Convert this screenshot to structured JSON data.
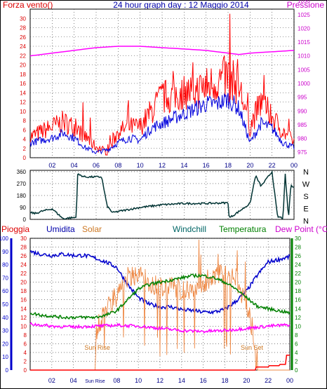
{
  "chart_data": [
    {
      "type": "line",
      "title": "24 hour graph day : 12 Maggio 2014",
      "left_label": "Forza vento()",
      "right_label": "Pressione",
      "x_ticks": [
        "02",
        "04",
        "06",
        "08",
        "10",
        "12",
        "14",
        "16",
        "18",
        "20",
        "22",
        "00"
      ],
      "y_left_ticks": [
        "0",
        "2",
        "4",
        "6",
        "8",
        "10",
        "12",
        "14",
        "16",
        "18",
        "20",
        "22",
        "24",
        "26",
        "28",
        "30"
      ],
      "y_left_range": [
        0,
        32
      ],
      "y_right_ticks": [
        "975",
        "980",
        "985",
        "990",
        "995",
        "1000",
        "1005",
        "1010",
        "1015",
        "1020",
        "1025",
        "1030"
      ],
      "y_right_range": [
        973,
        1027
      ],
      "grid": true,
      "series": [
        {
          "name": "Forza vento",
          "color": "#ff0000",
          "axis": "left",
          "style": "noisy",
          "x": [
            0,
            1,
            2,
            3,
            4,
            5,
            6,
            7,
            8,
            9,
            10,
            11,
            12,
            13,
            14,
            15,
            16,
            17,
            18,
            19,
            20,
            21,
            22,
            23,
            24
          ],
          "y": [
            4,
            5,
            6,
            7,
            6,
            4,
            2,
            1,
            5,
            6,
            6,
            9,
            12,
            12,
            13,
            13,
            14,
            15,
            16,
            14,
            6,
            11,
            8,
            5,
            3
          ]
        },
        {
          "name": "Raffica",
          "color": "#0000dd",
          "axis": "left",
          "style": "noisy",
          "x": [
            0,
            1,
            2,
            3,
            4,
            5,
            6,
            7,
            8,
            9,
            10,
            11,
            12,
            13,
            14,
            15,
            16,
            17,
            18,
            19,
            20,
            21,
            22,
            23,
            24
          ],
          "y": [
            3,
            3.5,
            4,
            5,
            4,
            2,
            1,
            1.5,
            3,
            4,
            3.5,
            6,
            7,
            8,
            9,
            10,
            11,
            11,
            12,
            10,
            3,
            7,
            6,
            3,
            2
          ]
        },
        {
          "name": "Pressione",
          "color": "#ff00ff",
          "axis": "right",
          "style": "smooth",
          "x": [
            0,
            2,
            4,
            6,
            8,
            10,
            12,
            14,
            16,
            18,
            19,
            20,
            22,
            24
          ],
          "y": [
            1010,
            1011,
            1012,
            1013,
            1013.5,
            1013.5,
            1013,
            1012.5,
            1012,
            1011,
            1010.5,
            1011,
            1011.5,
            1012
          ]
        }
      ]
    },
    {
      "type": "line",
      "y_left_ticks": [
        "0",
        "90",
        "180",
        "270",
        "360"
      ],
      "y_left_range": [
        0,
        370
      ],
      "y_right_ticks": [
        "N",
        "W",
        "S",
        "E",
        "N"
      ],
      "grid": true,
      "series": [
        {
          "name": "Direzione vento",
          "color": "#003333",
          "axis": "left",
          "style": "noisy",
          "x": [
            0,
            0.5,
            1,
            2,
            2.8,
            3,
            3.5,
            4.2,
            4.3,
            5,
            6,
            6.5,
            7,
            7.5,
            8,
            10,
            12,
            14,
            16,
            18,
            18.1,
            19,
            20,
            20.5,
            21,
            22,
            22.5,
            23,
            23.2,
            23.5,
            23.7,
            24
          ],
          "y": [
            50,
            45,
            60,
            80,
            20,
            5,
            10,
            15,
            340,
            320,
            320,
            320,
            100,
            50,
            60,
            90,
            110,
            120,
            120,
            125,
            10,
            60,
            120,
            330,
            250,
            360,
            20,
            10,
            340,
            10,
            250,
            250
          ]
        }
      ]
    },
    {
      "type": "line",
      "labels": [
        "Pioggia",
        "Umidita",
        "Solar",
        "Windchill",
        "Temperatura",
        "Dew Point (°C)"
      ],
      "x_ticks": [
        "02",
        "04",
        "Sun Rise",
        "08",
        "10",
        "12",
        "14",
        "16",
        "18",
        "20",
        "22",
        "00"
      ],
      "y_left_ticks": [
        "0",
        "10",
        "20",
        "30",
        "40",
        "50",
        "60",
        "70",
        "80",
        "90",
        "100"
      ],
      "y_left_range": [
        0,
        100
      ],
      "y_mid_ticks": [
        "0",
        "2",
        "4",
        "6",
        "8",
        "10",
        "12",
        "14",
        "16",
        "18",
        "20",
        "22",
        "24",
        "26",
        "28",
        "30"
      ],
      "y_right_ticks": [
        "0",
        "2",
        "4",
        "6",
        "8",
        "10",
        "12",
        "14",
        "16",
        "18",
        "20",
        "22",
        "24",
        "26",
        "28",
        "30"
      ],
      "y_temp_range": [
        0,
        30
      ],
      "annotations": [
        {
          "text": "Sun Rise",
          "x": 6.2
        },
        {
          "text": "Sun Set",
          "x": 20.5
        }
      ],
      "grid": true,
      "series": [
        {
          "name": "Umidita",
          "color": "#0000cc",
          "axis": "left",
          "style": "noisy",
          "x": [
            0,
            1,
            2,
            3,
            4,
            5,
            6,
            7,
            8,
            9,
            10,
            11,
            12,
            13,
            14,
            15,
            16,
            17,
            18,
            19,
            20,
            21,
            22,
            23,
            24
          ],
          "y": [
            90,
            88,
            87,
            88,
            87,
            87,
            85,
            82,
            78,
            65,
            55,
            50,
            48,
            48,
            46,
            45,
            44,
            44,
            46,
            52,
            60,
            72,
            82,
            84,
            86
          ]
        },
        {
          "name": "Solar",
          "color": "#ee8844",
          "axis": "temp",
          "style": "spiky",
          "x": [
            0,
            6,
            6.1,
            7,
            8,
            9,
            10,
            11,
            12,
            13,
            14,
            15,
            16,
            17,
            18,
            19,
            20,
            20.5,
            21,
            24
          ],
          "y": [
            0,
            0,
            9,
            14,
            17,
            21,
            22,
            20,
            19,
            19,
            18,
            19,
            20,
            21,
            22,
            21,
            15,
            10,
            0,
            0
          ]
        },
        {
          "name": "Temperatura",
          "color": "#008000",
          "axis": "temp",
          "style": "noisy",
          "x": [
            0,
            1,
            2,
            3,
            4,
            5,
            6,
            7,
            8,
            9,
            10,
            11,
            12,
            13,
            14,
            15,
            16,
            17,
            18,
            19,
            20,
            21,
            22,
            23,
            24
          ],
          "y": [
            13,
            12.5,
            12.3,
            12,
            12,
            12,
            12,
            12.5,
            13.5,
            16,
            18.5,
            19.5,
            20,
            20.5,
            21,
            21.5,
            21.5,
            21,
            20,
            18.5,
            16.5,
            14.5,
            14,
            13.5,
            13
          ]
        },
        {
          "name": "Dew Point",
          "color": "#ff00ff",
          "axis": "temp",
          "style": "noisy",
          "x": [
            0,
            2,
            4,
            6,
            8,
            10,
            12,
            14,
            16,
            18,
            20,
            22,
            24
          ],
          "y": [
            10.5,
            10,
            9.8,
            10,
            10.2,
            10,
            9.5,
            9,
            8.8,
            9,
            9.5,
            10,
            10.3
          ]
        },
        {
          "name": "Pioggia",
          "color": "#ff0000",
          "axis": "temp",
          "style": "step",
          "x": [
            0,
            20.8,
            20.9,
            22,
            22.1,
            23,
            23.1,
            23.6,
            23.7,
            24
          ],
          "y": [
            0,
            0,
            0.7,
            0.7,
            1.0,
            1.0,
            1.3,
            1.3,
            3.4,
            3.4
          ]
        }
      ]
    }
  ]
}
